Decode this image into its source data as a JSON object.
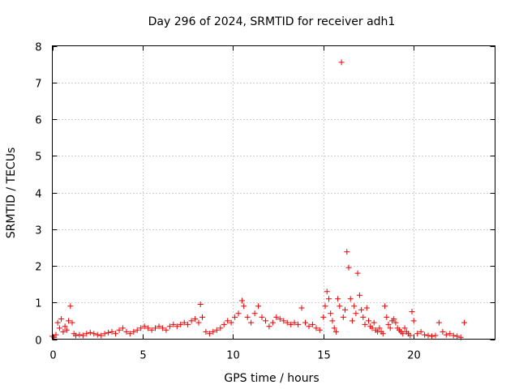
{
  "chart_data": {
    "type": "scatter",
    "title": "Day 296 of 2024, SRMTID for receiver adh1",
    "xlabel": "GPS time / hours",
    "ylabel": "SRMTID / TECUs",
    "xlim": [
      0,
      24.5
    ],
    "ylim": [
      0,
      8
    ],
    "xticks": [
      0,
      5,
      10,
      15,
      20
    ],
    "yticks": [
      0,
      1,
      2,
      3,
      4,
      5,
      6,
      7,
      8
    ],
    "xtick_labels": [
      "0",
      "5",
      "10",
      "15",
      "20"
    ],
    "ytick_labels": [
      "0",
      "1",
      "2",
      "3",
      "4",
      "5",
      "6",
      "7",
      "8"
    ],
    "grid": true,
    "marker": "+",
    "marker_color": "#ee0000",
    "series": [
      {
        "name": "adh1",
        "x": [
          0.0,
          0.1,
          0.2,
          0.3,
          0.4,
          0.5,
          0.6,
          0.7,
          0.8,
          0.9,
          1.0,
          1.1,
          1.2,
          1.3,
          1.5,
          1.7,
          1.9,
          2.1,
          2.3,
          2.5,
          2.7,
          2.9,
          3.1,
          3.3,
          3.5,
          3.7,
          3.9,
          4.1,
          4.3,
          4.5,
          4.7,
          4.9,
          5.1,
          5.3,
          5.5,
          5.7,
          5.9,
          6.1,
          6.3,
          6.5,
          6.7,
          6.9,
          7.1,
          7.3,
          7.5,
          7.7,
          7.9,
          8.1,
          8.2,
          8.3,
          8.5,
          8.7,
          8.9,
          9.1,
          9.3,
          9.5,
          9.7,
          9.9,
          10.1,
          10.3,
          10.5,
          10.6,
          10.8,
          11.0,
          11.2,
          11.4,
          11.6,
          11.8,
          12.0,
          12.2,
          12.4,
          12.6,
          12.8,
          13.0,
          13.2,
          13.4,
          13.6,
          13.8,
          14.0,
          14.2,
          14.4,
          14.6,
          14.8,
          15.0,
          15.1,
          15.2,
          15.3,
          15.4,
          15.5,
          15.6,
          15.7,
          15.8,
          15.9,
          16.0,
          16.1,
          16.2,
          16.3,
          16.4,
          16.5,
          16.6,
          16.7,
          16.8,
          16.9,
          17.0,
          17.1,
          17.2,
          17.3,
          17.4,
          17.5,
          17.6,
          17.7,
          17.8,
          17.9,
          18.0,
          18.1,
          18.2,
          18.3,
          18.4,
          18.5,
          18.6,
          18.7,
          18.8,
          18.9,
          19.0,
          19.1,
          19.2,
          19.3,
          19.4,
          19.5,
          19.6,
          19.7,
          19.8,
          19.9,
          20.0,
          20.2,
          20.4,
          20.6,
          20.8,
          21.0,
          21.2,
          21.4,
          21.6,
          21.8,
          22.0,
          22.2,
          22.4,
          22.6,
          22.8
        ],
        "y": [
          0.08,
          0.05,
          0.12,
          0.45,
          0.3,
          0.55,
          0.2,
          0.35,
          0.25,
          0.5,
          0.9,
          0.45,
          0.15,
          0.1,
          0.12,
          0.1,
          0.15,
          0.18,
          0.15,
          0.12,
          0.1,
          0.15,
          0.18,
          0.2,
          0.15,
          0.25,
          0.3,
          0.2,
          0.15,
          0.2,
          0.25,
          0.3,
          0.35,
          0.3,
          0.25,
          0.3,
          0.35,
          0.3,
          0.25,
          0.35,
          0.4,
          0.35,
          0.4,
          0.45,
          0.4,
          0.5,
          0.55,
          0.45,
          0.95,
          0.6,
          0.2,
          0.15,
          0.2,
          0.25,
          0.3,
          0.4,
          0.5,
          0.45,
          0.6,
          0.7,
          1.05,
          0.9,
          0.6,
          0.45,
          0.7,
          0.9,
          0.6,
          0.5,
          0.35,
          0.45,
          0.6,
          0.55,
          0.5,
          0.45,
          0.4,
          0.45,
          0.4,
          0.85,
          0.45,
          0.35,
          0.4,
          0.3,
          0.25,
          0.6,
          0.9,
          1.3,
          1.1,
          0.7,
          0.5,
          0.3,
          0.2,
          1.1,
          0.9,
          7.55,
          0.6,
          0.8,
          2.38,
          1.95,
          1.1,
          0.5,
          0.9,
          0.7,
          1.8,
          1.2,
          0.8,
          0.6,
          0.4,
          0.85,
          0.5,
          0.35,
          0.3,
          0.45,
          0.25,
          0.2,
          0.3,
          0.2,
          0.15,
          0.9,
          0.6,
          0.4,
          0.3,
          0.5,
          0.55,
          0.45,
          0.3,
          0.25,
          0.2,
          0.15,
          0.3,
          0.2,
          0.15,
          0.1,
          0.75,
          0.5,
          0.15,
          0.2,
          0.12,
          0.1,
          0.08,
          0.1,
          0.45,
          0.2,
          0.12,
          0.15,
          0.1,
          0.08,
          0.05,
          0.45
        ]
      }
    ]
  }
}
